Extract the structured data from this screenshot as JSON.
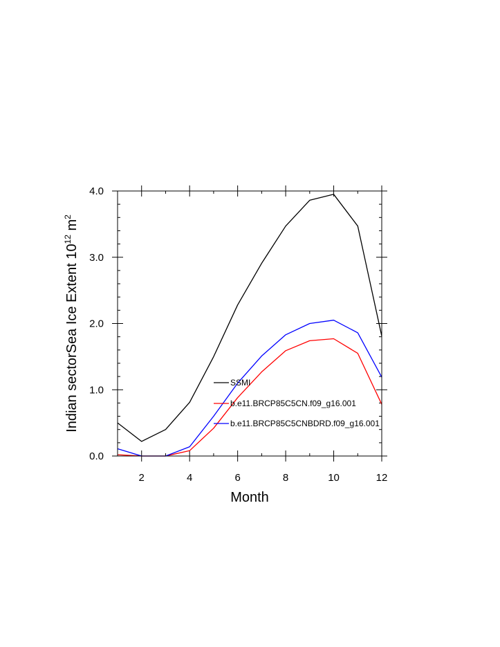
{
  "chart_data": {
    "type": "line",
    "xlabel": "Month",
    "ylabel": {
      "base": "Indian sectorSea Ice Extent 10",
      "exp1": "12",
      "unit": " m",
      "exp2": "2"
    },
    "xlim": [
      1,
      12
    ],
    "ylim": [
      0,
      4
    ],
    "x_ticks": [
      "2",
      "4",
      "6",
      "8",
      "10",
      "12"
    ],
    "y_ticks": [
      "0.0",
      "1.0",
      "2.0",
      "3.0",
      "4.0"
    ],
    "grid": false,
    "legend_position": "inside-center",
    "x": [
      1,
      2,
      3,
      4,
      5,
      6,
      7,
      8,
      9,
      10,
      11,
      12
    ],
    "series": [
      {
        "name": "SSMI",
        "color": "#000000",
        "values": [
          0.5,
          0.22,
          0.4,
          0.81,
          1.5,
          2.28,
          2.91,
          3.47,
          3.86,
          3.95,
          3.47,
          1.81
        ]
      },
      {
        "name": "b.e11.BRCP85C5CN.f09_g16.001",
        "color": "#ff0000",
        "values": [
          0.02,
          0.0,
          0.0,
          0.08,
          0.42,
          0.88,
          1.27,
          1.59,
          1.74,
          1.77,
          1.55,
          0.78
        ]
      },
      {
        "name": "b.e11.BRCP85C5CNBDRD.f09_g16.001",
        "color": "#0000ff",
        "values": [
          0.11,
          0.0,
          0.0,
          0.14,
          0.6,
          1.1,
          1.51,
          1.83,
          2.0,
          2.05,
          1.86,
          1.19
        ]
      }
    ]
  }
}
